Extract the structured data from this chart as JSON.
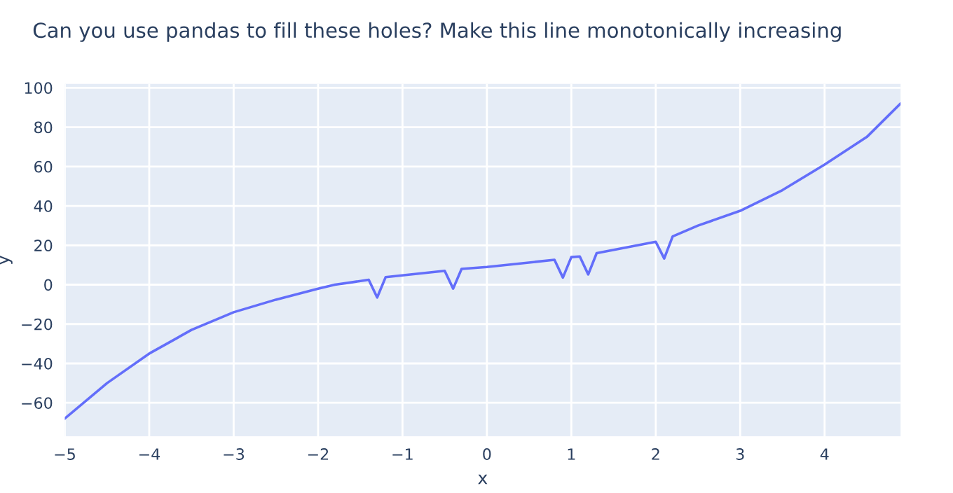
{
  "chart_data": {
    "type": "line",
    "title": "Can you use pandas to fill these holes? Make this line monotonically increasing",
    "xlabel": "x",
    "ylabel": "y",
    "x": [
      -5,
      -4.5,
      -4,
      -3.5,
      -3,
      -2.5,
      -2,
      -1.8,
      -1.6,
      -1.4,
      -1.3,
      -1.2,
      -0.5,
      -0.4,
      -0.3,
      0,
      0.8,
      0.9,
      1.0,
      1.1,
      1.2,
      1.3,
      2.0,
      2.1,
      2.2,
      2.5,
      3,
      3.5,
      4,
      4.5,
      4.9
    ],
    "series": [
      {
        "color": "#636efa",
        "values": [
          -68,
          -50,
          -35,
          -23,
          -14,
          -7.6,
          -2,
          0,
          1.2,
          2.5,
          -6.5,
          3.8,
          7,
          -2,
          8,
          9,
          12.6,
          3.6,
          14,
          14.3,
          5.2,
          16,
          21.8,
          13.3,
          24.5,
          30,
          37.5,
          48,
          61,
          75,
          92
        ]
      }
    ],
    "xlim": [
      -5,
      4.9
    ],
    "ylim": [
      -77,
      102
    ],
    "xticks": [
      {
        "value": -5,
        "label": "−5"
      },
      {
        "value": -4,
        "label": "−4"
      },
      {
        "value": -3,
        "label": "−3"
      },
      {
        "value": -2,
        "label": "−2"
      },
      {
        "value": -1,
        "label": "−1"
      },
      0,
      1,
      2,
      3,
      4
    ],
    "yticks": [
      {
        "value": -60,
        "label": "−60"
      },
      {
        "value": -40,
        "label": "−40"
      },
      {
        "value": -20,
        "label": "−20"
      },
      0,
      20,
      40,
      60,
      80,
      100
    ],
    "grid": true,
    "legend": false
  }
}
